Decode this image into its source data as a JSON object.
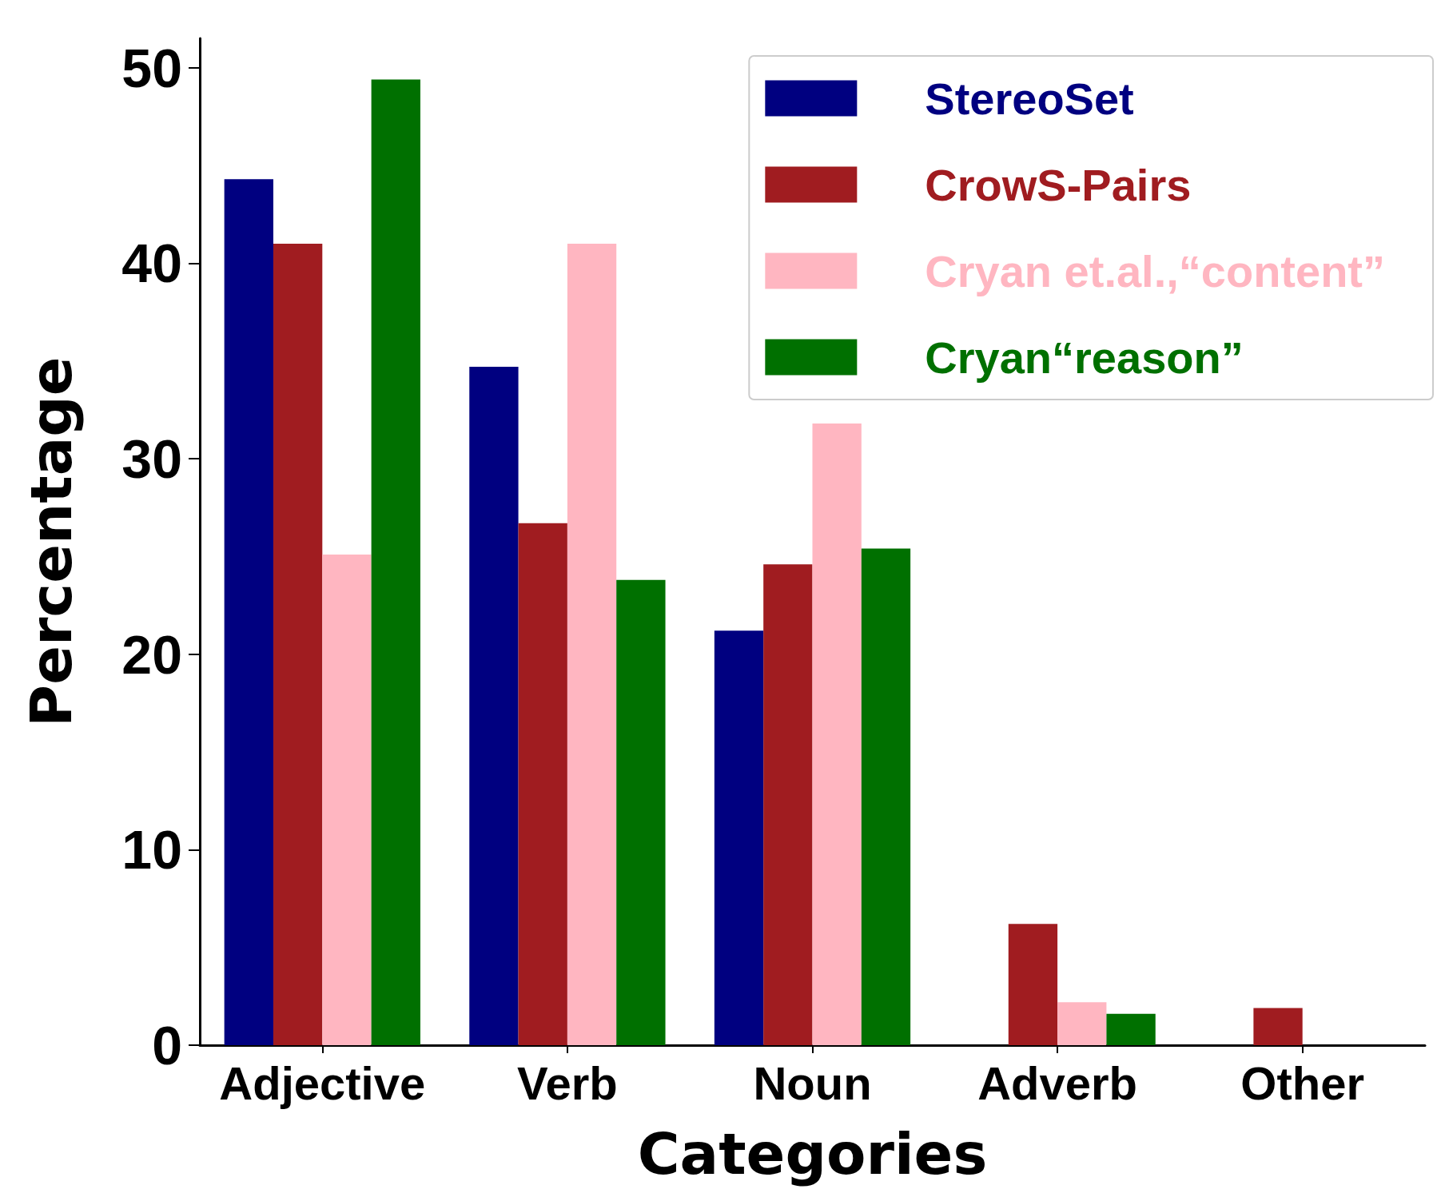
{
  "chart_data": {
    "type": "bar",
    "xlabel": "Categories",
    "ylabel": "Percentage",
    "categories": [
      "Adjective",
      "Verb",
      "Noun",
      "Adverb",
      "Other"
    ],
    "series": [
      {
        "name": "StereoSet",
        "color": "#000080",
        "values": [
          44.3,
          34.7,
          21.2,
          0,
          null
        ]
      },
      {
        "name": "CrowS-Pairs",
        "color": "#a01c20",
        "values": [
          41.0,
          26.7,
          24.6,
          6.2,
          1.9
        ]
      },
      {
        "name": "Cryan et.al.,“content”",
        "color": "#ffb6c1",
        "values": [
          25.1,
          41.0,
          31.8,
          2.2,
          null
        ]
      },
      {
        "name": "Cryan“reason”",
        "color": "#007000",
        "values": [
          49.4,
          23.8,
          25.4,
          1.6,
          null
        ]
      }
    ],
    "ylim": [
      0,
      51.5
    ],
    "yticks": [
      0,
      10,
      20,
      30,
      40,
      50
    ],
    "grid": false,
    "legend": "top right"
  }
}
